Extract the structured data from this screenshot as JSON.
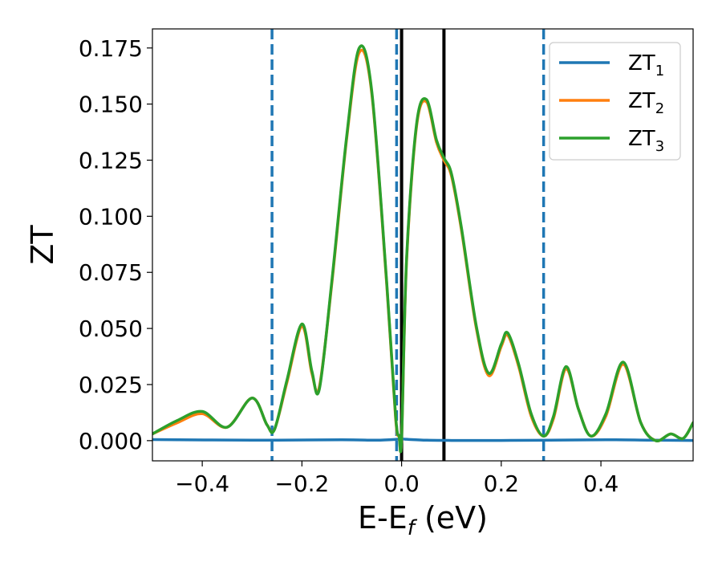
{
  "chart_data": {
    "type": "line",
    "title": "",
    "xlabel": {
      "main": "E-E",
      "sub": "f",
      "suffix": " (eV)"
    },
    "ylabel": "ZT",
    "xlim": [
      -0.5,
      0.585
    ],
    "ylim": [
      -0.009,
      0.1835
    ],
    "x_ticks": [
      -0.4,
      -0.2,
      0.0,
      0.2,
      0.4
    ],
    "x_tick_labels": [
      "−0.4",
      "−0.2",
      "0.0",
      "0.2",
      "0.4"
    ],
    "y_ticks": [
      0.0,
      0.025,
      0.05,
      0.075,
      0.1,
      0.125,
      0.15,
      0.175
    ],
    "y_tick_labels": [
      "0.000",
      "0.025",
      "0.050",
      "0.075",
      "0.100",
      "0.125",
      "0.150",
      "0.175"
    ],
    "grid": false,
    "legend_position": "top-right",
    "vlines": [
      {
        "x": -0.26,
        "style": "dashed",
        "color": "#1f77b4"
      },
      {
        "x": -0.01,
        "style": "dashed",
        "color": "#1f77b4"
      },
      {
        "x": 0.285,
        "style": "dashed",
        "color": "#1f77b4"
      },
      {
        "x": 0.0,
        "style": "solid",
        "color": "#000000"
      },
      {
        "x": 0.085,
        "style": "solid",
        "color": "#000000"
      }
    ],
    "series": [
      {
        "name": "ZT",
        "sub": "1",
        "color": "#1f77b4",
        "x": [
          -0.5,
          -0.3,
          -0.12,
          -0.05,
          0.0,
          0.01,
          0.05,
          0.1,
          0.2,
          0.35,
          0.43,
          0.5,
          0.585
        ],
        "y": [
          0.0005,
          0.0002,
          0.0004,
          0.0002,
          0.0007,
          0.0006,
          0.0002,
          0.0001,
          0.0001,
          0.0003,
          0.0004,
          0.0002,
          0.0001
        ]
      },
      {
        "name": "ZT",
        "sub": "2",
        "color": "#ff7f0e",
        "x": [
          -0.5,
          -0.45,
          -0.4,
          -0.35,
          -0.3,
          -0.27,
          -0.255,
          -0.23,
          -0.2,
          -0.18,
          -0.165,
          -0.14,
          -0.11,
          -0.085,
          -0.06,
          -0.03,
          -0.012,
          -0.005,
          0.0,
          0.01,
          0.03,
          0.05,
          0.07,
          0.085,
          0.1,
          0.12,
          0.15,
          0.175,
          0.2,
          0.213,
          0.235,
          0.26,
          0.285,
          0.305,
          0.33,
          0.355,
          0.38,
          0.41,
          0.445,
          0.48,
          0.51,
          0.54,
          0.565,
          0.585
        ],
        "y": [
          0.003,
          0.008,
          0.012,
          0.006,
          0.019,
          0.007,
          0.005,
          0.026,
          0.051,
          0.03,
          0.024,
          0.07,
          0.135,
          0.173,
          0.155,
          0.07,
          0.01,
          0.002,
          0.001,
          0.08,
          0.14,
          0.151,
          0.133,
          0.125,
          0.118,
          0.094,
          0.05,
          0.029,
          0.042,
          0.047,
          0.033,
          0.011,
          0.002,
          0.01,
          0.032,
          0.014,
          0.002,
          0.011,
          0.034,
          0.008,
          0.0,
          0.003,
          0.001,
          0.008
        ]
      },
      {
        "name": "ZT",
        "sub": "3",
        "color": "#2ca02c",
        "x": [
          -0.5,
          -0.45,
          -0.4,
          -0.35,
          -0.3,
          -0.27,
          -0.255,
          -0.23,
          -0.2,
          -0.18,
          -0.165,
          -0.14,
          -0.11,
          -0.085,
          -0.06,
          -0.03,
          -0.012,
          -0.005,
          0.0,
          0.01,
          0.03,
          0.05,
          0.07,
          0.085,
          0.1,
          0.12,
          0.15,
          0.175,
          0.2,
          0.213,
          0.235,
          0.26,
          0.285,
          0.305,
          0.33,
          0.355,
          0.38,
          0.41,
          0.445,
          0.48,
          0.51,
          0.54,
          0.565,
          0.585
        ],
        "y": [
          0.003,
          0.009,
          0.013,
          0.006,
          0.019,
          0.007,
          0.005,
          0.027,
          0.052,
          0.031,
          0.023,
          0.071,
          0.136,
          0.175,
          0.156,
          0.071,
          0.011,
          0.002,
          0.001,
          0.081,
          0.141,
          0.152,
          0.134,
          0.126,
          0.119,
          0.095,
          0.051,
          0.03,
          0.043,
          0.048,
          0.034,
          0.012,
          0.002,
          0.011,
          0.033,
          0.014,
          0.002,
          0.012,
          0.035,
          0.008,
          0.0,
          0.003,
          0.001,
          0.008
        ]
      }
    ]
  }
}
